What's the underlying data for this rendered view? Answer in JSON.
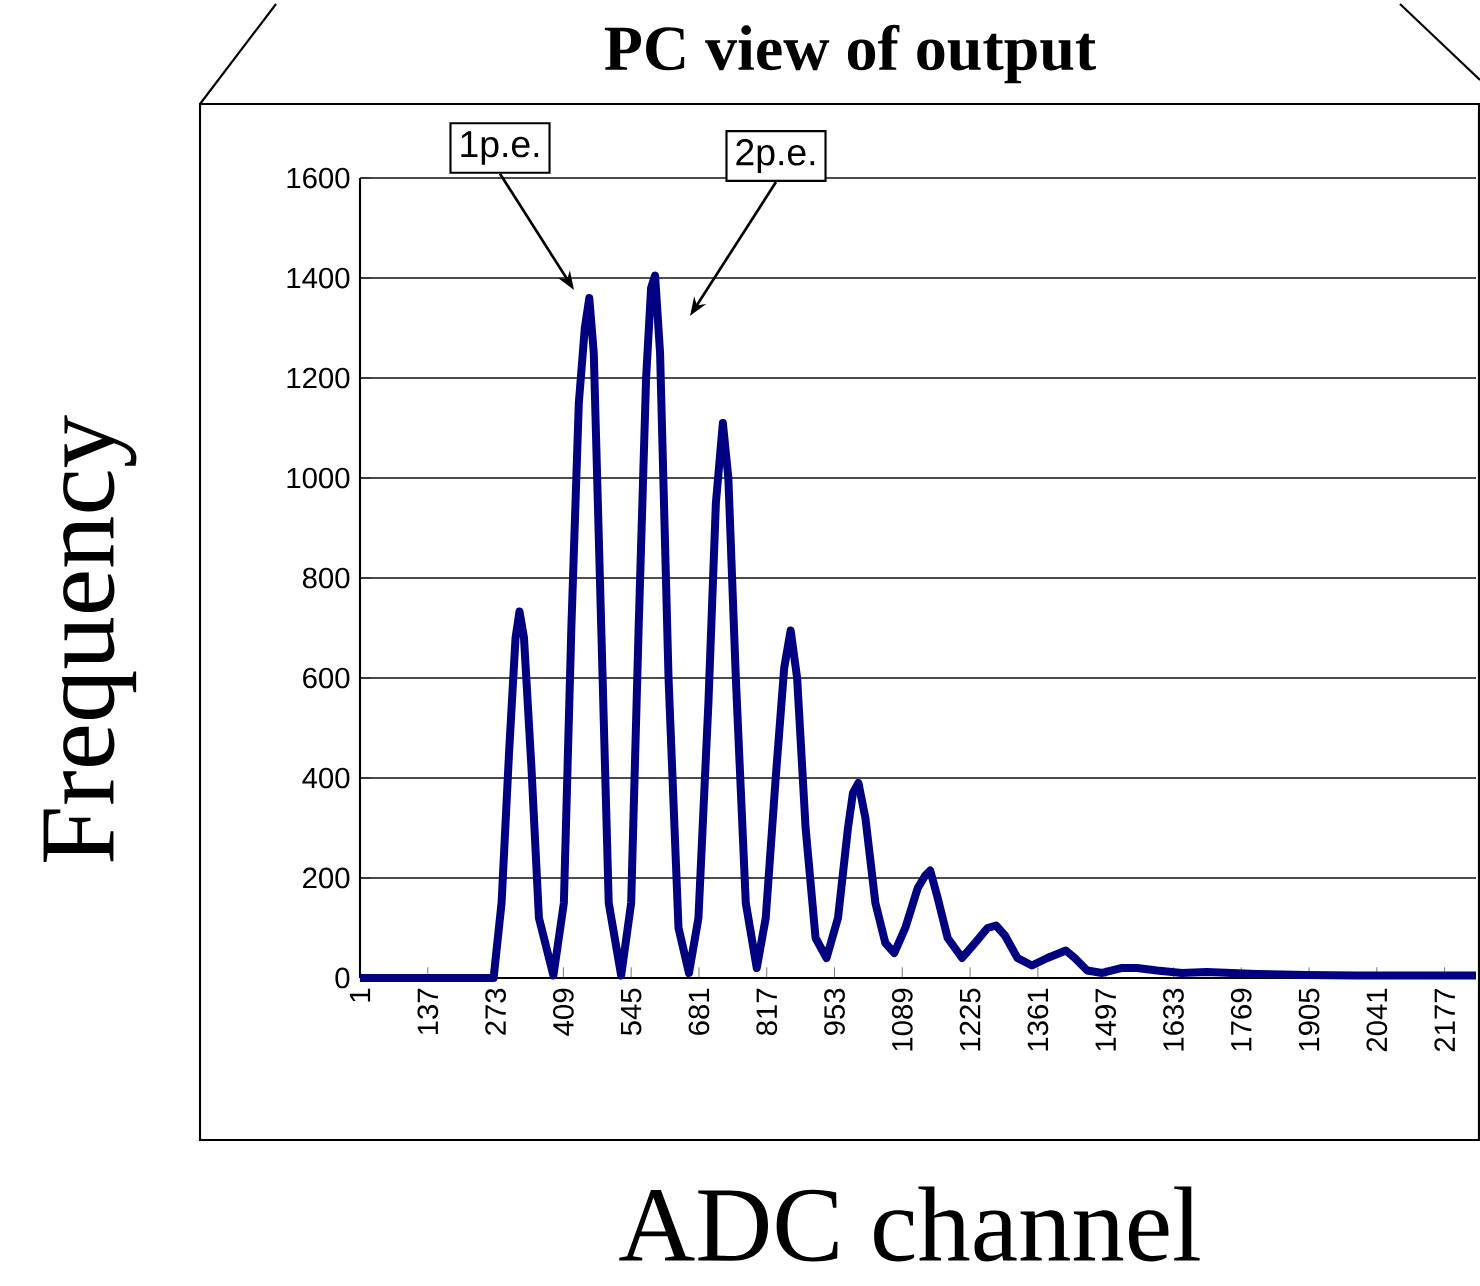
{
  "chart_data": {
    "type": "line",
    "title": "PC view of output",
    "xlabel": "ADC channel",
    "ylabel": "Frequency",
    "x": [
      1,
      100,
      200,
      260,
      269,
      285,
      300,
      313,
      321,
      330,
      345,
      360,
      389,
      410,
      425,
      440,
      452,
      461,
      470,
      485,
      500,
      525,
      545,
      560,
      575,
      585,
      593,
      603,
      620,
      640,
      661,
      680,
      700,
      715,
      729,
      740,
      755,
      775,
      797,
      815,
      835,
      852,
      865,
      878,
      895,
      915,
      937,
      960,
      980,
      990,
      1001,
      1015,
      1035,
      1055,
      1073,
      1095,
      1120,
      1135,
      1145,
      1160,
      1180,
      1209,
      1235,
      1260,
      1277,
      1295,
      1320,
      1349,
      1380,
      1405,
      1417,
      1435,
      1460,
      1490,
      1530,
      1560,
      1600,
      1650,
      1700,
      1800,
      1900,
      2000,
      2100,
      2240
    ],
    "series": [
      {
        "color": "#000080",
        "values": [
          0,
          0,
          0,
          0,
          0,
          150,
          450,
          680,
          733,
          680,
          420,
          120,
          5,
          150,
          700,
          1150,
          1300,
          1360,
          1250,
          700,
          150,
          5,
          150,
          700,
          1200,
          1380,
          1405,
          1250,
          600,
          100,
          10,
          120,
          550,
          950,
          1110,
          1000,
          600,
          150,
          20,
          120,
          400,
          620,
          695,
          600,
          300,
          80,
          40,
          120,
          300,
          370,
          390,
          320,
          150,
          70,
          50,
          100,
          180,
          205,
          215,
          160,
          80,
          40,
          70,
          100,
          105,
          85,
          40,
          25,
          40,
          50,
          55,
          40,
          15,
          10,
          20,
          20,
          15,
          10,
          12,
          8,
          6,
          5,
          5,
          5
        ]
      }
    ],
    "xlim": [
      1,
      2240
    ],
    "xticks": [
      1,
      137,
      273,
      409,
      545,
      681,
      817,
      953,
      1089,
      1225,
      1361,
      1497,
      1633,
      1769,
      1905,
      2041,
      2177
    ],
    "ylim": [
      0,
      1600
    ],
    "yticks": [
      0,
      200,
      400,
      600,
      800,
      1000,
      1200,
      1400,
      1600
    ],
    "grid": "y",
    "marker": "none",
    "line_style": "solid",
    "annotations": [
      "1p.e.",
      "2p.e."
    ]
  }
}
